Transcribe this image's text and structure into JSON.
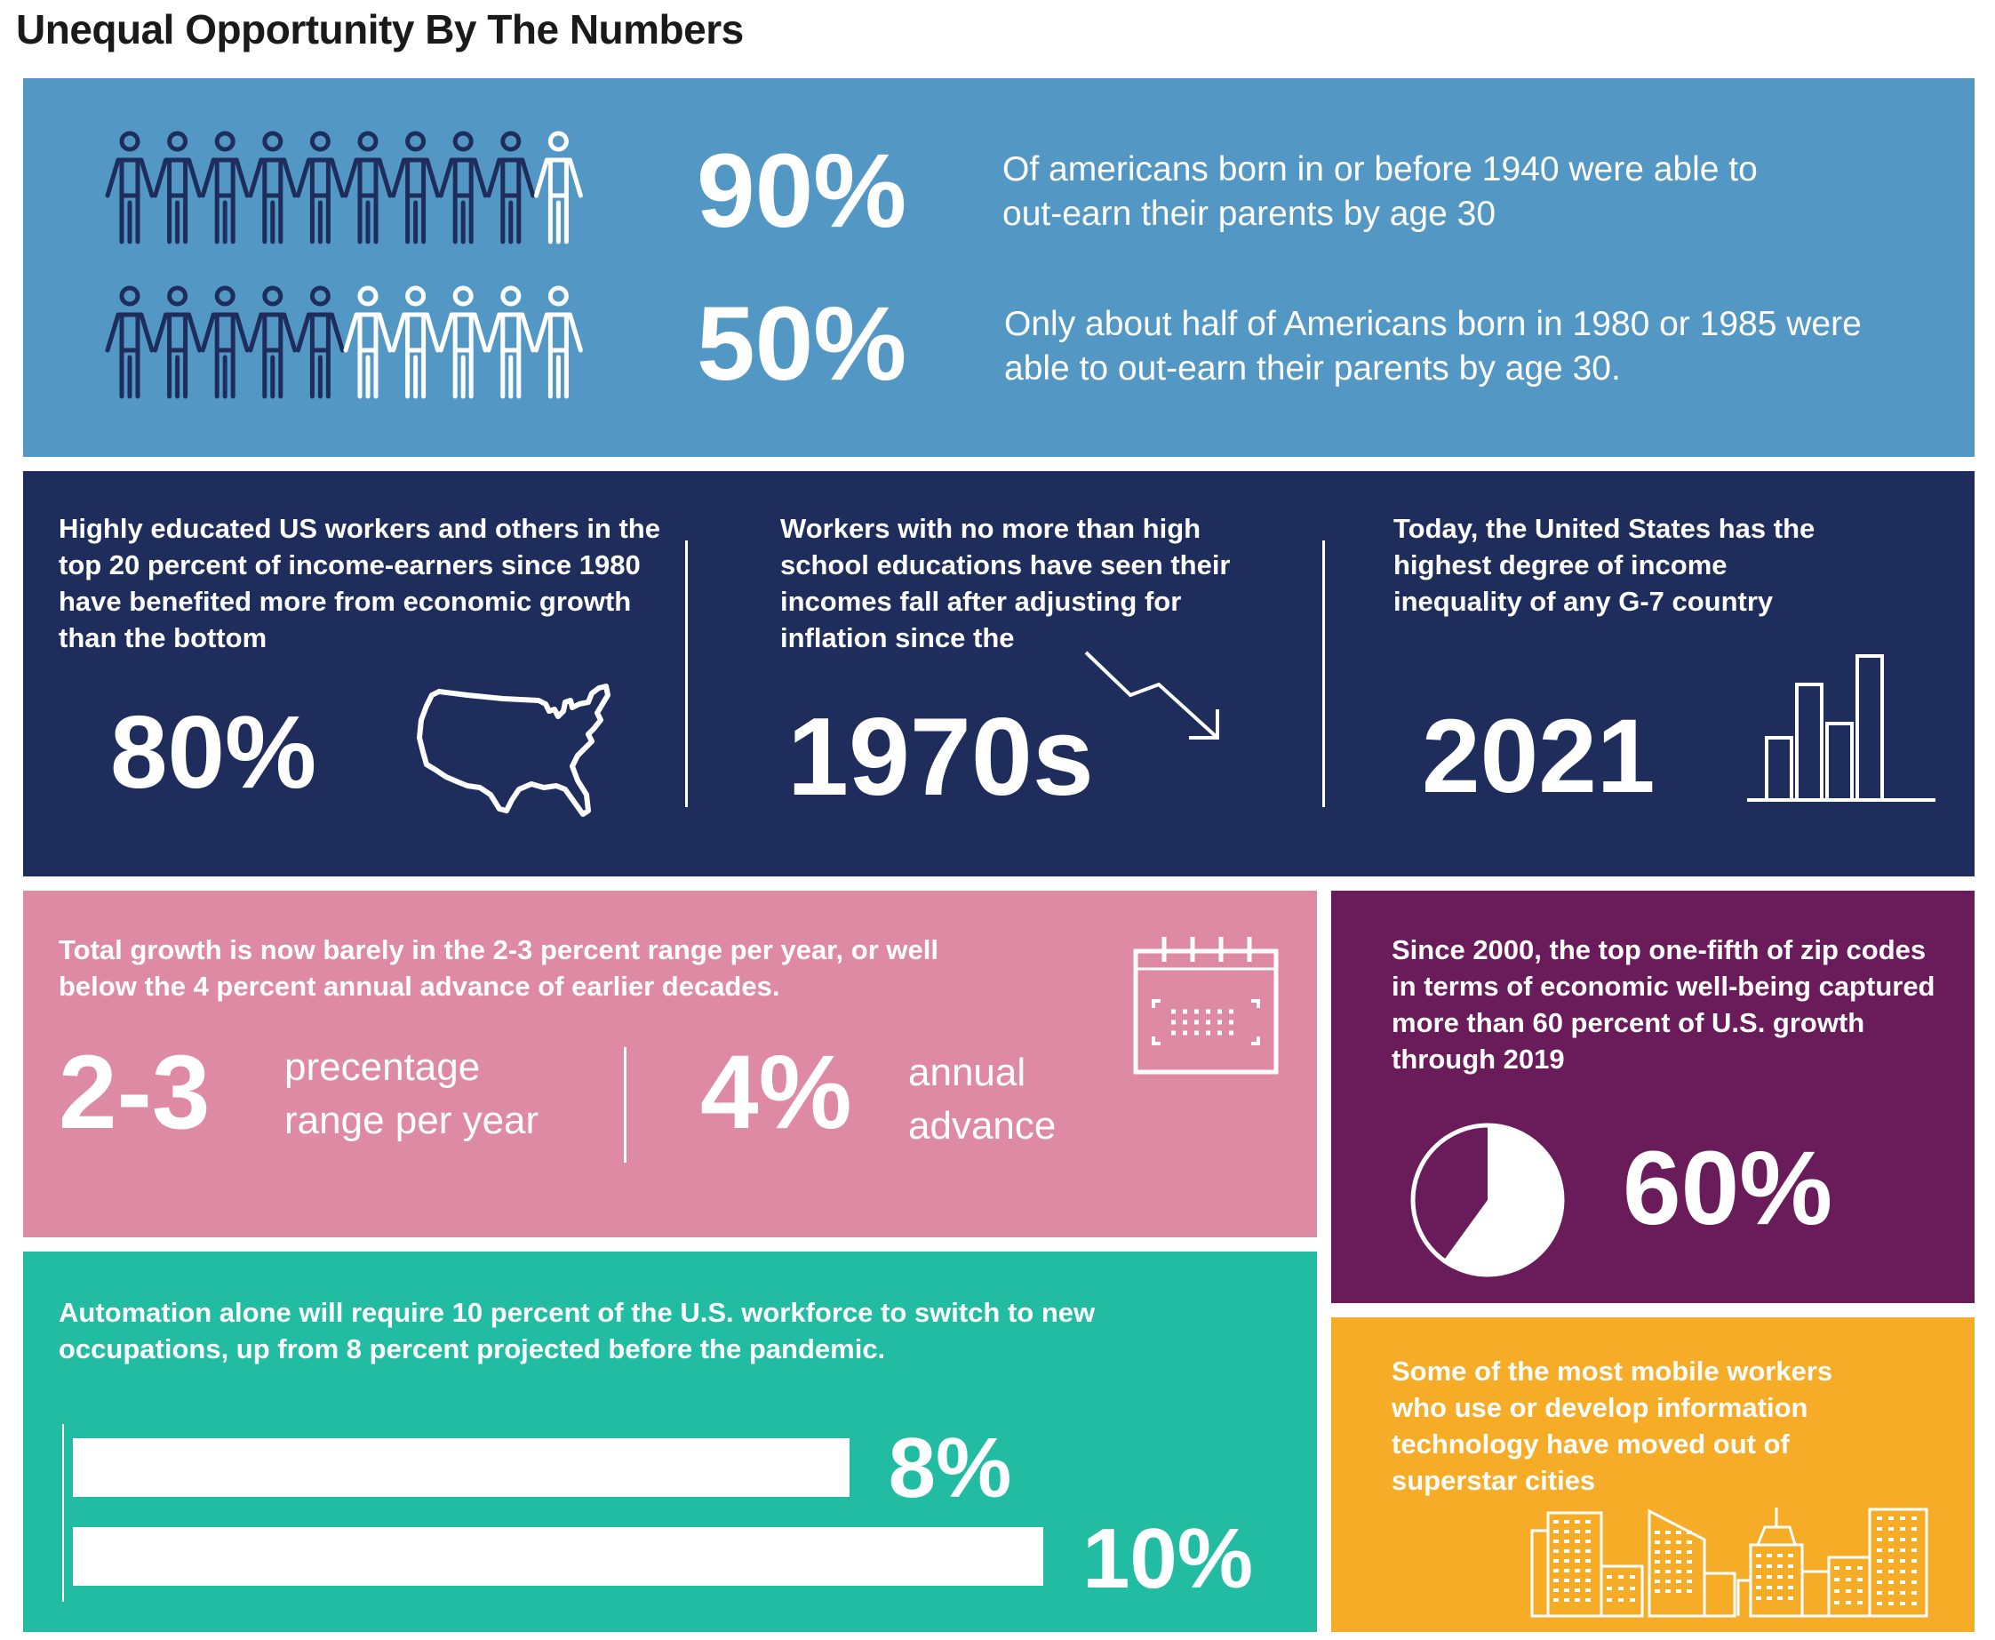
{
  "title": "Unequal Opportunity By The Numbers",
  "colors": {
    "blue": "#5398c4",
    "navy": "#1e2d5b",
    "pink": "#de8aa4",
    "purple": "#6a1b59",
    "teal": "#21bca1",
    "yellow": "#f6ac26",
    "person_dark": "#1e2d5b",
    "person_light": "#ffffff"
  },
  "mobility": {
    "row1": {
      "value": "90%",
      "filled_count": 9,
      "total_count": 10,
      "text": "Of americans born in or before 1940 were able to out-earn their parents by age 30"
    },
    "row2": {
      "value": "50%",
      "filled_count": 5,
      "total_count": 10,
      "text": "Only about half of Americans born in 1980 or 1985 were able to out-earn their parents by age 30."
    }
  },
  "stats": {
    "educated": {
      "text": "Highly educated US workers and others in the top 20 percent of income-earners since 1980 have benefited more from economic growth than the bottom",
      "value": "80%",
      "icon": "usa-map-icon"
    },
    "workers": {
      "text": "Workers with no more than high school educations have seen their incomes fall after adjusting for inflation since the",
      "value": "1970s",
      "icon": "trend-down-icon"
    },
    "inequality": {
      "text": "Today, the United States has the highest degree of income inequality of any G-7 country",
      "value": "2021",
      "icon": "bar-chart-icon"
    }
  },
  "growth": {
    "text": "Total growth is now barely in the 2-3 percent range per year, or well below the 4 percent annual advance of earlier decades.",
    "value1": "2-3",
    "label1a": "precentage",
    "label1b": "range per year",
    "value2": "4%",
    "label2a": "annual",
    "label2b": "advance",
    "icon": "calendar-icon"
  },
  "zipcodes": {
    "text": "Since 2000, the top one-fifth of zip codes in terms of economic well-being captured more than 60 percent of U.S. growth through 2019",
    "value": "60%",
    "share": 0.6,
    "icon": "pie-chart-icon"
  },
  "automation": {
    "text": "Automation alone will require 10 percent of the U.S. workforce to switch to new occupations, up from 8 percent projected before the pandemic.",
    "bars": [
      {
        "label": "8%",
        "value": 8
      },
      {
        "label": "10%",
        "value": 10
      }
    ]
  },
  "mobile": {
    "text": "Some of the most mobile workers who use or develop information technology have moved out of superstar cities",
    "icon": "city-skyline-icon"
  }
}
